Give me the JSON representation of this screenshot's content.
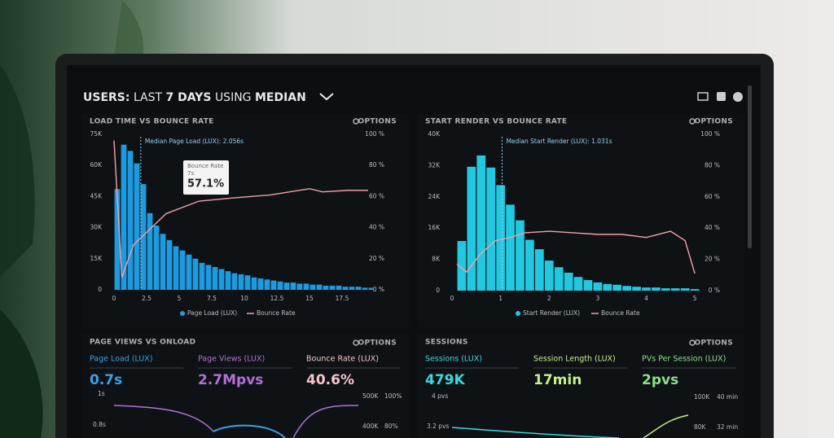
{
  "header": {
    "title_parts": [
      "USERS:",
      "LAST",
      "7 DAYS",
      "USING",
      "MEDIAN"
    ]
  },
  "chart_data": [
    {
      "type": "histogram",
      "title": "LOAD TIME VS BOUNCE RATE",
      "options_label": "OPTIONS",
      "bins": [
        0,
        0.5,
        1,
        1.5,
        2,
        2.5,
        3,
        3.5,
        4,
        4.5,
        5,
        5.5,
        6,
        6.5,
        7,
        7.5,
        8,
        8.5,
        9,
        9.5,
        10,
        10.5,
        11,
        11.5,
        12,
        12.5,
        13,
        13.5,
        14,
        14.5,
        15,
        15.5,
        16,
        16.5,
        17,
        17.5,
        18,
        18.5,
        19,
        19.5,
        20
      ],
      "series": [
        {
          "name": "Page Load (LUX)",
          "color": "#1e9be0",
          "values": [
            48600,
            70000,
            67000,
            61000,
            51000,
            37000,
            31000,
            27000,
            24000,
            21000,
            19000,
            17000,
            15000,
            13000,
            12000,
            11000,
            10000,
            9000,
            8000,
            7500,
            7000,
            6000,
            5500,
            5000,
            4500,
            4000,
            3500,
            3500,
            3000,
            3000,
            2500,
            2500,
            2000,
            2000,
            2000,
            1500,
            1500,
            1500,
            1000,
            1000
          ]
        },
        {
          "name": "Bounce Rate",
          "color": "#f2a0a8",
          "axis": "y2",
          "x": [
            0,
            0.6,
            1.5,
            2.5,
            4,
            6.5,
            9,
            12,
            15,
            16,
            18,
            19.5
          ],
          "values": [
            96,
            8,
            29,
            37,
            49,
            57,
            59,
            61,
            65,
            63,
            64,
            64
          ]
        }
      ],
      "median": {
        "x": 2.056,
        "label": "Median Page Load (LUX): 2.056s"
      },
      "tooltip": {
        "label": "Bounce Rate",
        "x_label": "7s",
        "value_label": "57.1%"
      },
      "xlim": [
        0,
        20
      ],
      "xticks": [
        0,
        2.5,
        5,
        7.5,
        10,
        12.5,
        15,
        17.5
      ],
      "ylim": [
        0,
        75000
      ],
      "yticks": [
        0,
        {
          "value": 15000,
          "label": "15K"
        },
        {
          "value": 30000,
          "label": "30K"
        },
        {
          "value": 45000,
          "label": "45K"
        },
        {
          "value": 60000,
          "label": "60K"
        },
        {
          "value": 75000,
          "label": "75K"
        }
      ],
      "y2lim": [
        0,
        100
      ],
      "y2ticks": [
        {
          "value": 0,
          "label": "0 %"
        },
        {
          "value": 20,
          "label": "20 %"
        },
        {
          "value": 40,
          "label": "40 %"
        },
        {
          "value": 60,
          "label": "60 %"
        },
        {
          "value": 80,
          "label": "80 %"
        },
        {
          "value": 100,
          "label": "100 %"
        }
      ],
      "grid": false
    },
    {
      "type": "histogram",
      "title": "START RENDER VS BOUNCE RATE",
      "options_label": "OPTIONS",
      "bins": [
        0.1,
        0.3,
        0.5,
        0.7,
        0.9,
        1.1,
        1.3,
        1.5,
        1.7,
        1.9,
        2.1,
        2.3,
        2.5,
        2.7,
        2.9,
        3.1,
        3.3,
        3.5,
        3.7,
        3.9,
        4.1,
        4.3,
        4.5,
        4.7,
        4.9,
        5.1
      ],
      "series": [
        {
          "name": "Start Render (LUX)",
          "color": "#22c7e0",
          "values": [
            12700,
            31700,
            34600,
            31500,
            27000,
            22000,
            18000,
            13000,
            10600,
            7700,
            6000,
            4600,
            3500,
            2700,
            2100,
            1700,
            1500,
            1200,
            1000,
            800,
            800,
            600,
            600,
            600,
            400
          ]
        },
        {
          "name": "Bounce Rate",
          "color": "#f2a0a8",
          "axis": "y2",
          "x": [
            0.1,
            0.3,
            0.6,
            0.9,
            1.2,
            1.5,
            2,
            2.5,
            3,
            3.5,
            4,
            4.5,
            4.8,
            5
          ],
          "values": [
            17,
            12,
            24,
            32,
            34,
            37,
            38,
            37,
            36,
            36,
            34,
            38,
            32,
            11
          ]
        }
      ],
      "median": {
        "x": 1.031,
        "label": "Median Start Render (LUX): 1.031s"
      },
      "xlim": [
        0,
        5.25
      ],
      "xticks": [
        0,
        1,
        2,
        3,
        4,
        5
      ],
      "ylim": [
        0,
        40000
      ],
      "yticks": [
        0,
        {
          "value": 8000,
          "label": "8K"
        },
        {
          "value": 16000,
          "label": "16K"
        },
        {
          "value": 24000,
          "label": "24K"
        },
        {
          "value": 32000,
          "label": "32K"
        },
        {
          "value": 40000,
          "label": "40K"
        }
      ],
      "y2lim": [
        0,
        100
      ],
      "y2ticks": [
        {
          "value": 0,
          "label": "0 %"
        },
        {
          "value": 20,
          "label": "20 %"
        },
        {
          "value": 40,
          "label": "40 %"
        },
        {
          "value": 60,
          "label": "60 %"
        },
        {
          "value": 80,
          "label": "80 %"
        },
        {
          "value": 100,
          "label": "100 %"
        }
      ],
      "grid": false
    }
  ],
  "panels": [
    {
      "title": "PAGE VIEWS VS ONLOAD",
      "options_label": "OPTIONS",
      "metrics": [
        {
          "label": "Page Load (LUX)",
          "value": "0.7s",
          "color": "#3aa0e8"
        },
        {
          "label": "Page Views (LUX)",
          "value": "2.7Mpvs",
          "color": "#b46fd8"
        },
        {
          "label": "Bounce Rate (LUX)",
          "value": "40.6%",
          "color": "#f6c4cc"
        }
      ],
      "axis_labels": [
        "1s",
        "0.8s",
        "500K",
        "100%",
        "400K",
        "80%"
      ]
    },
    {
      "title": "SESSIONS",
      "options_label": "OPTIONS",
      "metrics": [
        {
          "label": "Sessions (LUX)",
          "value": "479K",
          "color": "#3ad7e0"
        },
        {
          "label": "Session Length (LUX)",
          "value": "17min",
          "color": "#c8f08a"
        },
        {
          "label": "PVs Per Session (LUX)",
          "value": "2pvs",
          "color": "#8ee08a"
        }
      ],
      "axis_labels": [
        "4 pvs",
        "3.2 pvs",
        "100K",
        "40 min",
        "80K",
        "32 min"
      ]
    }
  ]
}
